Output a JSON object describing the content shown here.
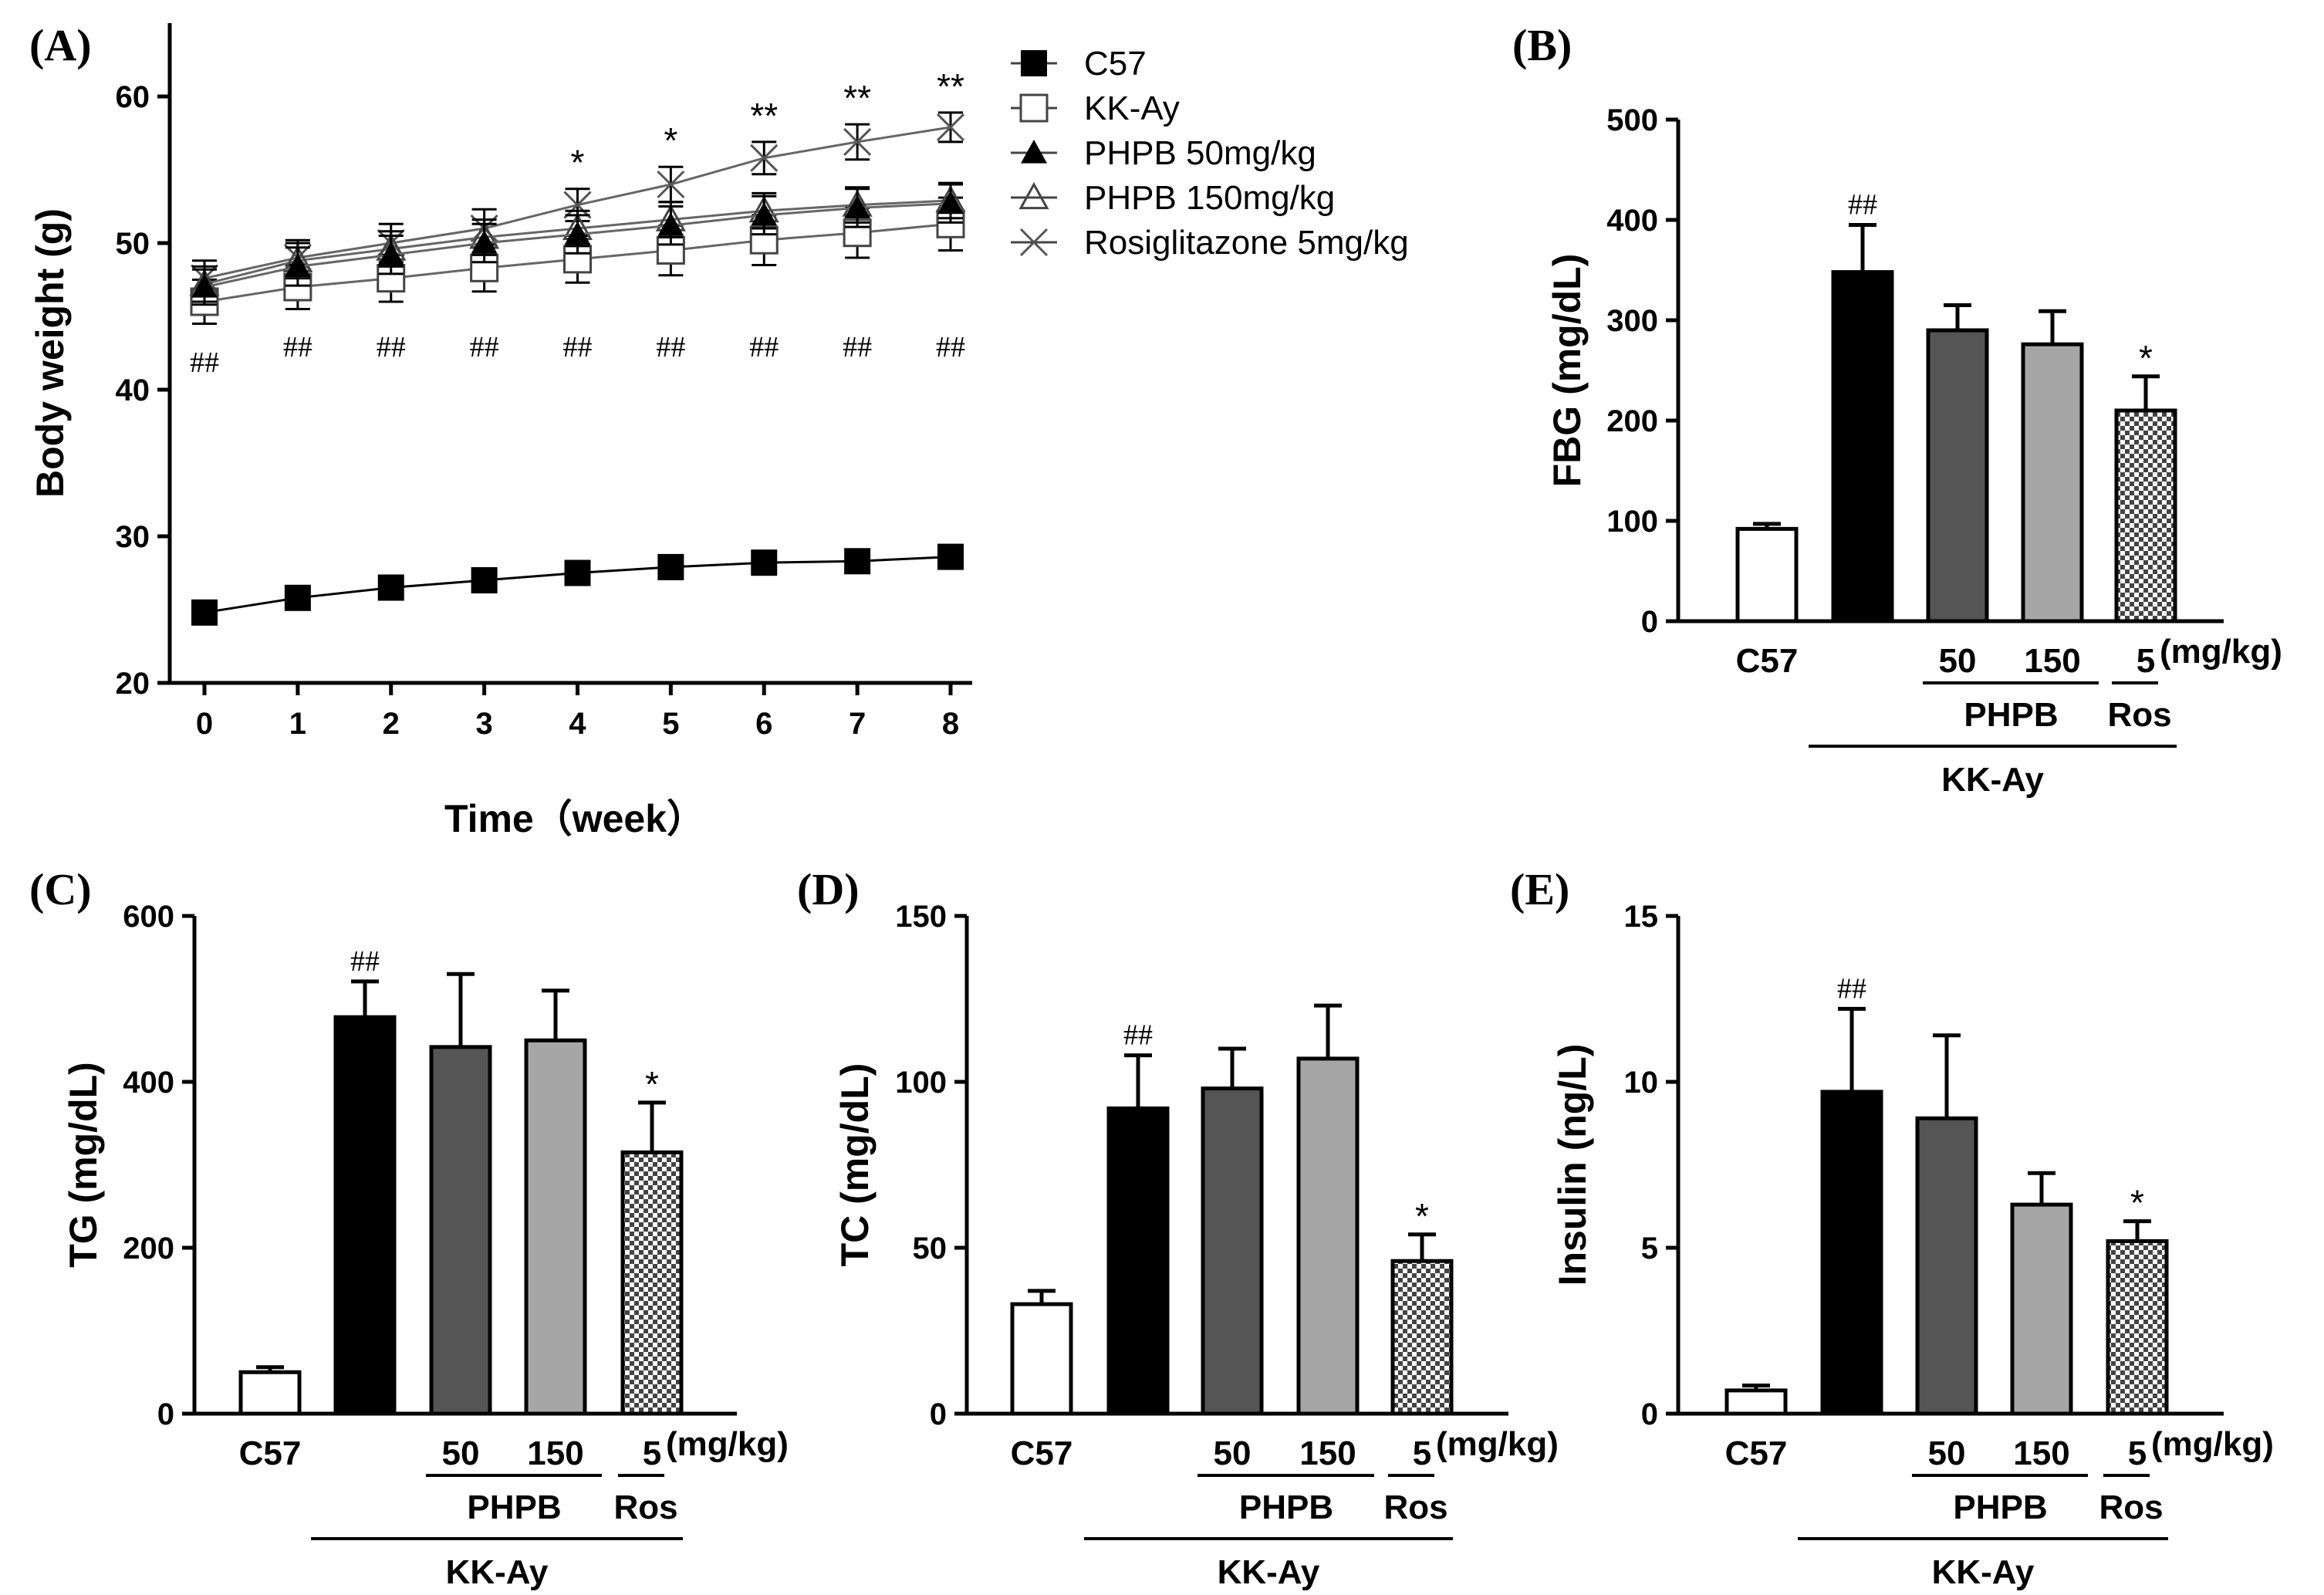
{
  "chart_data": [
    {
      "panel": "(A)",
      "type": "line",
      "xlabel": "Time（week）",
      "ylabel": "Body weight (g)",
      "x": [
        0,
        1,
        2,
        3,
        4,
        5,
        6,
        7,
        8
      ],
      "xlim": [
        0,
        8
      ],
      "ylim": [
        20,
        65
      ],
      "yticks": [
        20,
        30,
        40,
        50,
        60
      ],
      "series": [
        {
          "name": "C57",
          "marker": "filled-square",
          "values": [
            24.8,
            25.8,
            26.5,
            27.0,
            27.5,
            27.9,
            28.2,
            28.3,
            28.6
          ],
          "err": [
            0.5,
            0.5,
            0.5,
            0.5,
            0.5,
            0.5,
            0.5,
            0.5,
            0.5
          ]
        },
        {
          "name": "KK-Ay",
          "marker": "open-square",
          "values": [
            46.0,
            47.0,
            47.6,
            48.3,
            48.9,
            49.5,
            50.2,
            50.7,
            51.3
          ],
          "err": [
            1.5,
            1.5,
            1.6,
            1.6,
            1.6,
            1.7,
            1.7,
            1.7,
            1.8
          ]
        },
        {
          "name": "PHPB 50mg/kg",
          "marker": "filled-triangle",
          "values": [
            47.0,
            48.4,
            49.2,
            50.0,
            50.6,
            51.2,
            51.9,
            52.4,
            52.7
          ],
          "err": [
            1.2,
            1.3,
            1.3,
            1.3,
            1.3,
            1.3,
            1.3,
            1.3,
            1.3
          ]
        },
        {
          "name": "PHPB 150mg/kg",
          "marker": "open-triangle",
          "values": [
            47.2,
            48.8,
            49.6,
            50.4,
            51.0,
            51.6,
            52.2,
            52.6,
            52.9
          ],
          "err": [
            1.2,
            1.2,
            1.2,
            1.2,
            1.2,
            1.2,
            1.2,
            1.2,
            1.2
          ]
        },
        {
          "name": "Rosiglitazone 5mg/kg",
          "marker": "x",
          "values": [
            47.6,
            49.0,
            50.0,
            51.0,
            52.6,
            54.0,
            55.8,
            56.9,
            57.9
          ],
          "err": [
            1.2,
            1.2,
            1.3,
            1.3,
            1.1,
            1.2,
            1.1,
            1.2,
            1.0
          ]
        }
      ],
      "annotations_upper": [
        "",
        "",
        "",
        "",
        "*",
        "*",
        "**",
        "**",
        "**"
      ],
      "annotations_lower": [
        "##",
        "##",
        "##",
        "##",
        "##",
        "##",
        "##",
        "##",
        "##"
      ],
      "legend": "top-right"
    },
    {
      "panel": "(B)",
      "type": "bar",
      "ylabel": "FBG (mg/dL)",
      "ylim": [
        0,
        500
      ],
      "yticks": [
        0,
        100,
        200,
        300,
        400,
        500
      ],
      "categories": [
        "C57",
        "",
        "50",
        "150",
        "5"
      ],
      "unit_label": "(mg/kg)",
      "group_labels": {
        "phpb": "PHPB",
        "ros": "Ros",
        "kkay": "KK-Ay"
      },
      "values": [
        92,
        348,
        290,
        276,
        210
      ],
      "err": [
        5,
        47,
        25,
        33,
        34
      ],
      "fills": [
        "white",
        "black",
        "darkgray",
        "lightgray",
        "checker"
      ],
      "annotations": [
        "",
        "##",
        "",
        "",
        "*"
      ]
    },
    {
      "panel": "(C)",
      "type": "bar",
      "ylabel": "TG (mg/dL)",
      "ylim": [
        0,
        600
      ],
      "yticks": [
        0,
        200,
        400,
        600
      ],
      "categories": [
        "C57",
        "",
        "50",
        "150",
        "5"
      ],
      "unit_label": "(mg/kg)",
      "group_labels": {
        "phpb": "PHPB",
        "ros": "Ros",
        "kkay": "KK-Ay"
      },
      "values": [
        50,
        478,
        442,
        450,
        315
      ],
      "err": [
        6,
        43,
        88,
        60,
        60
      ],
      "fills": [
        "white",
        "black",
        "darkgray",
        "lightgray",
        "checker"
      ],
      "annotations": [
        "",
        "##",
        "",
        "",
        "*"
      ]
    },
    {
      "panel": "(D)",
      "type": "bar",
      "ylabel": "TC (mg/dL)",
      "ylim": [
        0,
        150
      ],
      "yticks": [
        0,
        50,
        100,
        150
      ],
      "categories": [
        "C57",
        "",
        "50",
        "150",
        "5"
      ],
      "unit_label": "(mg/kg)",
      "group_labels": {
        "phpb": "PHPB",
        "ros": "Ros",
        "kkay": "KK-Ay"
      },
      "values": [
        33,
        92,
        98,
        107,
        46
      ],
      "err": [
        4,
        16,
        12,
        16,
        8
      ],
      "fills": [
        "white",
        "black",
        "darkgray",
        "lightgray",
        "checker"
      ],
      "annotations": [
        "",
        "##",
        "",
        "",
        "*"
      ]
    },
    {
      "panel": "(E)",
      "type": "bar",
      "ylabel": "Insulin (ng/L)",
      "ylim": [
        0,
        15
      ],
      "yticks": [
        0,
        5,
        10,
        15
      ],
      "categories": [
        "C57",
        "",
        "50",
        "150",
        "5"
      ],
      "unit_label": "(mg/kg)",
      "group_labels": {
        "phpb": "PHPB",
        "ros": "Ros",
        "kkay": "KK-Ay"
      },
      "values": [
        0.7,
        9.7,
        8.9,
        6.3,
        5.2
      ],
      "err": [
        0.15,
        2.5,
        2.5,
        0.95,
        0.6
      ],
      "fills": [
        "white",
        "black",
        "darkgray",
        "lightgray",
        "checker"
      ],
      "annotations": [
        "",
        "##",
        "",
        "",
        "*"
      ]
    }
  ]
}
